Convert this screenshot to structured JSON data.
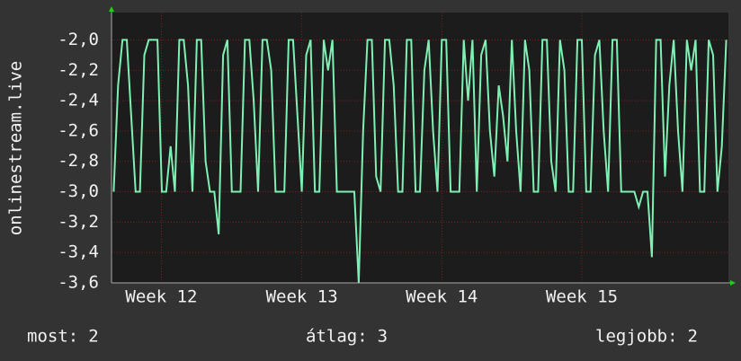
{
  "chart_data": {
    "type": "line",
    "y_label": "onlinestream.live",
    "color": "#7ff0b4",
    "values": [
      -3.0,
      -2.3,
      -2.0,
      -2.0,
      -2.5,
      -3.0,
      -3.0,
      -2.1,
      -2.0,
      -2.0,
      -2.0,
      -3.0,
      -3.0,
      -2.7,
      -3.0,
      -2.0,
      -2.0,
      -2.3,
      -3.0,
      -2.0,
      -2.0,
      -2.8,
      -3.0,
      -3.0,
      -3.28,
      -2.1,
      -2.0,
      -3.0,
      -3.0,
      -3.0,
      -2.0,
      -2.0,
      -2.4,
      -3.0,
      -2.0,
      -2.0,
      -2.2,
      -3.0,
      -3.0,
      -3.0,
      -2.0,
      -2.0,
      -2.5,
      -3.0,
      -2.1,
      -2.0,
      -3.0,
      -3.0,
      -2.0,
      -2.2,
      -2.0,
      -3.0,
      -3.0,
      -3.0,
      -3.0,
      -3.0,
      -3.6,
      -2.6,
      -2.0,
      -2.0,
      -2.9,
      -3.0,
      -2.0,
      -2.0,
      -2.3,
      -3.0,
      -3.0,
      -2.0,
      -2.0,
      -3.0,
      -3.0,
      -2.2,
      -2.0,
      -2.6,
      -3.0,
      -2.0,
      -2.0,
      -3.0,
      -3.0,
      -3.0,
      -2.0,
      -2.4,
      -2.0,
      -3.0,
      -2.1,
      -2.0,
      -2.6,
      -2.9,
      -2.3,
      -2.5,
      -2.8,
      -2.0,
      -2.6,
      -3.0,
      -2.0,
      -2.2,
      -3.0,
      -3.0,
      -2.0,
      -2.0,
      -2.8,
      -3.0,
      -2.0,
      -2.2,
      -3.0,
      -3.0,
      -2.0,
      -2.0,
      -3.0,
      -3.0,
      -2.1,
      -2.0,
      -2.6,
      -3.0,
      -2.0,
      -2.0,
      -3.0,
      -3.0,
      -3.0,
      -3.0,
      -3.1,
      -3.0,
      -3.0,
      -3.43,
      -2.0,
      -2.0,
      -2.9,
      -2.3,
      -2.0,
      -2.6,
      -3.0,
      -2.0,
      -2.2,
      -2.0,
      -3.0,
      -3.0,
      -2.0,
      -2.1,
      -3.0,
      -2.7,
      -2.0
    ],
    "xlim": [
      0,
      141
    ],
    "xticks": [
      {
        "value": 11.4,
        "label": "Week 12"
      },
      {
        "value": 43.5,
        "label": "Week 13"
      },
      {
        "value": 75.5,
        "label": "Week 14"
      },
      {
        "value": 107.5,
        "label": "Week 15"
      }
    ],
    "ylim": [
      -3.6,
      -1.82
    ],
    "yticks": [
      {
        "value": -2.0,
        "label": "-2,0"
      },
      {
        "value": -2.2,
        "label": "-2,2"
      },
      {
        "value": -2.4,
        "label": "-2,4"
      },
      {
        "value": -2.6,
        "label": "-2,6"
      },
      {
        "value": -2.8,
        "label": "-2,8"
      },
      {
        "value": -3.0,
        "label": "-3,0"
      },
      {
        "value": -3.2,
        "label": "-3,2"
      },
      {
        "value": -3.4,
        "label": "-3,4"
      },
      {
        "value": -3.6,
        "label": "-3,6"
      }
    ],
    "grid": true,
    "stats": [
      {
        "label": "most:",
        "value": 2
      },
      {
        "label": "átlag:",
        "value": 3
      },
      {
        "label": "legjobb:",
        "value": 2
      }
    ]
  }
}
